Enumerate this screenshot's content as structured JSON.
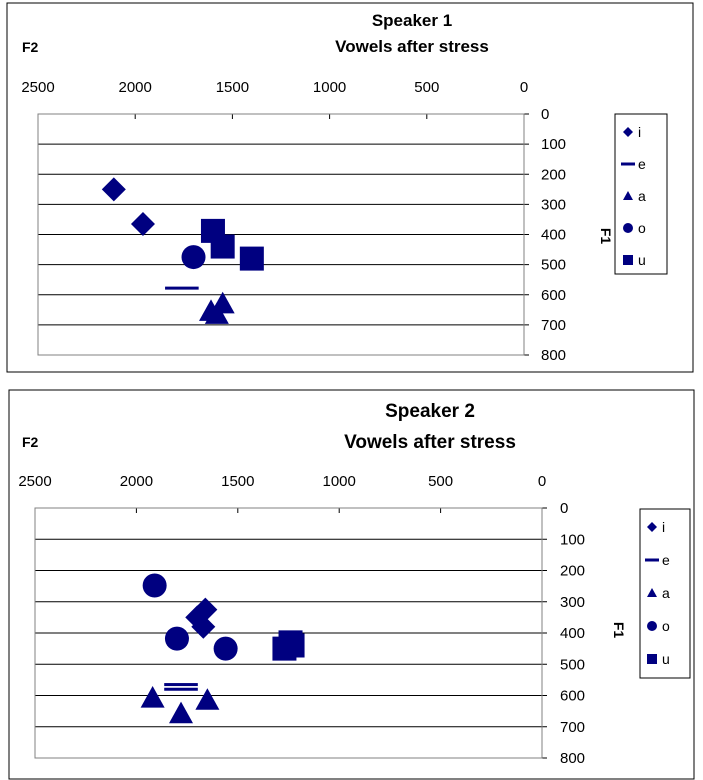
{
  "chart_data": [
    {
      "type": "scatter",
      "title": "Speaker 1",
      "subtitle": "Vowels after stress",
      "xlabel": "F2",
      "ylabel": "F1",
      "xlim": [
        0,
        2500
      ],
      "ylim": [
        0,
        800
      ],
      "x_reversed": true,
      "y_reversed": true,
      "x_ticks": [
        "2500",
        "2000",
        "1500",
        "1000",
        "500",
        "0"
      ],
      "y_ticks": [
        "0",
        "100",
        "200",
        "300",
        "400",
        "500",
        "600",
        "700",
        "800"
      ],
      "grid": "horizontal",
      "legend": "right",
      "color": "#000080",
      "series": [
        {
          "name": "i",
          "marker": "diamond",
          "points": [
            [
              2110,
              250
            ],
            [
              1960,
              365
            ]
          ]
        },
        {
          "name": "e",
          "marker": "dash",
          "points": [
            [
              1760,
              578
            ]
          ]
        },
        {
          "name": "a",
          "marker": "triangle",
          "points": [
            [
              1550,
              630
            ],
            [
              1610,
              655
            ],
            [
              1580,
              665
            ]
          ]
        },
        {
          "name": "o",
          "marker": "circle",
          "points": [
            [
              1700,
              475
            ]
          ]
        },
        {
          "name": "u",
          "marker": "square",
          "points": [
            [
              1600,
              388
            ],
            [
              1550,
              440
            ],
            [
              1400,
              480
            ]
          ]
        }
      ]
    },
    {
      "type": "scatter",
      "title": "Speaker 2",
      "subtitle": "Vowels after stress",
      "xlabel": "F2",
      "ylabel": "F1",
      "xlim": [
        0,
        2500
      ],
      "ylim": [
        0,
        800
      ],
      "x_reversed": true,
      "y_reversed": true,
      "x_ticks": [
        "2500",
        "2000",
        "1500",
        "1000",
        "500",
        "0"
      ],
      "y_ticks": [
        "0",
        "100",
        "200",
        "300",
        "400",
        "500",
        "600",
        "700",
        "800"
      ],
      "grid": "horizontal",
      "legend": "right",
      "color": "#000080",
      "series": [
        {
          "name": "i",
          "marker": "diamond",
          "points": [
            [
              1660,
              325
            ],
            [
              1700,
              350
            ],
            [
              1670,
              380
            ]
          ]
        },
        {
          "name": "e",
          "marker": "dash",
          "points": [
            [
              1780,
              565
            ],
            [
              1780,
              580
            ]
          ]
        },
        {
          "name": "a",
          "marker": "triangle",
          "points": [
            [
              1920,
              608
            ],
            [
              1650,
              615
            ],
            [
              1780,
              658
            ]
          ]
        },
        {
          "name": "o",
          "marker": "circle",
          "points": [
            [
              1910,
              248
            ],
            [
              1800,
              418
            ],
            [
              1560,
              450
            ]
          ]
        },
        {
          "name": "u",
          "marker": "square",
          "points": [
            [
              1240,
              430
            ],
            [
              1230,
              440
            ],
            [
              1270,
              450
            ]
          ]
        }
      ]
    }
  ]
}
